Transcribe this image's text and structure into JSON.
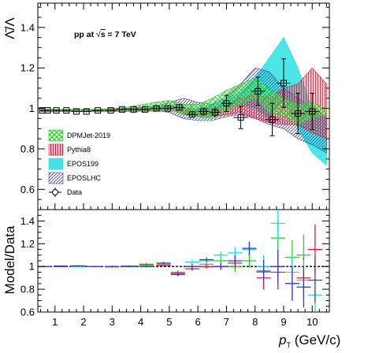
{
  "chart_data": [
    {
      "type": "line",
      "panel": "top",
      "ylabel": "Λ̄/Λ",
      "ylim": [
        0.5,
        1.52
      ],
      "xlim": [
        0.4,
        10.6
      ],
      "yticks": [
        0.6,
        0.8,
        1.0,
        1.2,
        1.4
      ],
      "yticklabels": [
        "0.6",
        "0.8",
        "1",
        "1.2",
        "1.4"
      ],
      "annotation": "pp at √s = 7 TeV",
      "annotation_parts": {
        "prefix": "pp at ",
        "root": "√",
        "s": "s",
        "suffix": " = 7 TeV"
      },
      "legend_position": "left",
      "legend": [
        {
          "name": "DPMJet-2019",
          "color": "#22cc22",
          "style": "cross-hatch"
        },
        {
          "name": "Pythia8",
          "color": "#ee1133",
          "style": "vertical-hatch"
        },
        {
          "name": "EPOS199",
          "color": "#11dddd",
          "style": "solid"
        },
        {
          "name": "EPOSLHC",
          "color": "#3333cc",
          "style": "diagonal-hatch"
        },
        {
          "name": "Data",
          "color": "#000000",
          "style": "marker"
        }
      ],
      "series": [
        {
          "name": "Data",
          "x": [
            0.55,
            0.75,
            1.05,
            1.4,
            1.75,
            2.1,
            2.5,
            2.95,
            3.35,
            3.75,
            4.15,
            4.55,
            4.95,
            5.35,
            5.8,
            6.2,
            6.6,
            7.0,
            7.5,
            8.1,
            8.6,
            9.0,
            9.5,
            10.0
          ],
          "y": [
            0.99,
            0.99,
            0.99,
            0.99,
            0.985,
            0.985,
            0.99,
            0.99,
            0.995,
            0.995,
            0.995,
            1.0,
            1.0,
            1.005,
            0.97,
            0.985,
            0.98,
            1.025,
            0.955,
            1.085,
            0.945,
            1.125,
            0.975,
            0.985
          ],
          "yerr": [
            0.005,
            0.005,
            0.005,
            0.005,
            0.005,
            0.005,
            0.005,
            0.005,
            0.005,
            0.006,
            0.006,
            0.008,
            0.01,
            0.012,
            0.015,
            0.02,
            0.025,
            0.04,
            0.055,
            0.07,
            0.08,
            0.12,
            0.1,
            0.09
          ],
          "xerr": [
            0.1,
            0.1,
            0.15,
            0.17,
            0.17,
            0.17,
            0.2,
            0.2,
            0.2,
            0.2,
            0.2,
            0.2,
            0.2,
            0.2,
            0.2,
            0.2,
            0.2,
            0.2,
            0.25,
            0.25,
            0.25,
            0.25,
            0.25,
            0.25
          ]
        },
        {
          "name": "DPMJet-2019",
          "x": [
            0.5,
            1.5,
            2.5,
            3.5,
            4.5,
            5.0,
            5.5,
            6.0,
            6.5,
            7.0,
            7.5,
            8.0,
            8.5,
            9.0,
            9.5,
            10.0,
            10.5
          ],
          "low": [
            0.985,
            0.985,
            0.985,
            0.985,
            0.985,
            0.995,
            0.97,
            0.96,
            0.95,
            0.99,
            1.02,
            1.05,
            0.98,
            0.96,
            0.92,
            0.95,
            0.97
          ],
          "high": [
            0.995,
            0.995,
            0.995,
            1.005,
            1.03,
            1.04,
            1.02,
            1.02,
            1.05,
            1.09,
            1.12,
            1.15,
            1.1,
            1.05,
            1.02,
            1.03,
            1.0
          ]
        },
        {
          "name": "Pythia8",
          "x": [
            0.5,
            1.5,
            2.5,
            3.5,
            4.5,
            5.0,
            5.5,
            6.0,
            6.5,
            7.0,
            7.5,
            8.0,
            8.5,
            9.0,
            9.5,
            10.0,
            10.5
          ],
          "low": [
            0.985,
            0.985,
            0.985,
            0.985,
            0.99,
            0.995,
            0.97,
            0.96,
            0.96,
            0.97,
            0.98,
            0.95,
            0.93,
            0.92,
            0.92,
            0.88,
            0.85
          ],
          "high": [
            0.995,
            0.995,
            0.995,
            1.0,
            1.01,
            1.015,
            1.0,
            0.99,
            1.0,
            1.02,
            1.05,
            1.07,
            1.05,
            1.1,
            1.12,
            1.2,
            1.12
          ]
        },
        {
          "name": "EPOS199",
          "x": [
            0.5,
            1.5,
            2.5,
            3.5,
            4.5,
            5.0,
            5.5,
            6.0,
            6.5,
            7.0,
            7.5,
            8.0,
            8.5,
            9.0,
            9.5,
            10.0,
            10.5
          ],
          "low": [
            0.985,
            0.985,
            0.985,
            0.99,
            0.99,
            0.995,
            0.975,
            0.96,
            0.97,
            1.0,
            1.02,
            1.0,
            0.95,
            1.05,
            0.9,
            0.78,
            0.72
          ],
          "high": [
            0.995,
            0.995,
            0.995,
            1.0,
            1.005,
            1.01,
            1.0,
            1.0,
            1.02,
            1.05,
            1.08,
            1.15,
            1.25,
            1.35,
            1.2,
            1.0,
            0.95
          ]
        },
        {
          "name": "EPOSLHC",
          "x": [
            0.5,
            1.5,
            2.5,
            3.5,
            4.5,
            5.0,
            5.5,
            6.0,
            6.5,
            7.0,
            7.5,
            8.0,
            8.5,
            9.0,
            9.5,
            10.0,
            10.5
          ],
          "low": [
            0.985,
            0.985,
            0.985,
            0.99,
            0.99,
            0.98,
            0.95,
            0.94,
            0.94,
            0.96,
            0.97,
            0.95,
            0.92,
            0.9,
            0.85,
            0.82,
            0.78
          ],
          "high": [
            0.995,
            0.995,
            0.995,
            1.0,
            1.01,
            1.03,
            1.05,
            1.03,
            1.02,
            1.06,
            1.12,
            1.2,
            1.18,
            1.1,
            1.05,
            1.0,
            0.96
          ]
        }
      ]
    },
    {
      "type": "scatter",
      "panel": "bottom",
      "ylabel": "Model/Data",
      "xlabel_main": "p",
      "xlabel_sub": "T",
      "xlabel_unit": " (GeV/c)",
      "ylim": [
        0.6,
        1.5
      ],
      "xlim": [
        0.4,
        10.6
      ],
      "yticks": [
        0.6,
        0.8,
        1.0,
        1.2,
        1.4
      ],
      "yticklabels": [
        "0.6",
        "0.8",
        "1",
        "1.2",
        "1.4"
      ],
      "xticks": [
        1,
        2,
        3,
        4,
        5,
        6,
        7,
        8,
        9,
        10
      ],
      "xticklabels": [
        "1",
        "2",
        "3",
        "4",
        "5",
        "6",
        "7",
        "8",
        "9",
        "10"
      ],
      "reference_line": 1.0,
      "series": [
        {
          "name": "DPMJet-2019",
          "color": "#22cc22",
          "x": [
            0.6,
            1.2,
            1.8,
            2.4,
            3.0,
            3.6,
            4.2,
            4.8,
            5.3,
            5.8,
            6.3,
            6.8,
            7.3,
            7.8,
            8.3,
            8.8,
            9.3,
            9.7,
            10.1
          ],
          "y": [
            1.0,
            1.0,
            1.005,
            1.0,
            1.0,
            1.005,
            1.01,
            1.02,
            0.95,
            1.0,
            1.02,
            1.05,
            1.0,
            1.05,
            0.95,
            1.25,
            1.08,
            1.1,
            1.15
          ],
          "yerr": [
            0.005,
            0.005,
            0.005,
            0.005,
            0.006,
            0.006,
            0.008,
            0.01,
            0.015,
            0.02,
            0.02,
            0.03,
            0.05,
            0.06,
            0.1,
            0.15,
            0.15,
            0.18,
            0.2
          ]
        },
        {
          "name": "Pythia8",
          "color": "#ee1133",
          "x": [
            0.6,
            1.2,
            1.8,
            2.4,
            3.0,
            3.6,
            4.2,
            4.8,
            5.3,
            5.8,
            6.3,
            6.8,
            7.3,
            7.8,
            8.3,
            8.8,
            9.3,
            9.7,
            10.1
          ],
          "y": [
            1.0,
            1.005,
            1.005,
            1.0,
            1.0,
            1.0,
            1.02,
            1.01,
            0.94,
            0.98,
            1.0,
            1.0,
            1.03,
            1.15,
            0.9,
            0.95,
            0.85,
            0.9,
            1.15
          ],
          "yerr": [
            0.005,
            0.005,
            0.005,
            0.005,
            0.006,
            0.006,
            0.008,
            0.01,
            0.015,
            0.02,
            0.02,
            0.03,
            0.05,
            0.06,
            0.1,
            0.15,
            0.15,
            0.18,
            0.22
          ]
        },
        {
          "name": "EPOS199",
          "color": "#11dddd",
          "x": [
            0.6,
            1.2,
            1.8,
            2.4,
            3.0,
            3.6,
            4.2,
            4.8,
            5.3,
            5.8,
            6.3,
            6.8,
            7.3,
            7.8,
            8.3,
            8.8,
            9.3,
            9.7,
            10.1
          ],
          "y": [
            1.0,
            1.0,
            1.0,
            1.0,
            0.995,
            1.0,
            1.0,
            1.02,
            0.93,
            1.04,
            1.05,
            1.1,
            1.12,
            1.15,
            1.0,
            1.38,
            0.95,
            0.88,
            0.75
          ],
          "yerr": [
            0.005,
            0.005,
            0.005,
            0.005,
            0.006,
            0.006,
            0.008,
            0.01,
            0.015,
            0.02,
            0.02,
            0.03,
            0.05,
            0.06,
            0.1,
            0.15,
            0.15,
            0.18,
            0.15
          ]
        },
        {
          "name": "EPOSLHC",
          "color": "#3333cc",
          "x": [
            0.6,
            1.2,
            1.8,
            2.4,
            3.0,
            3.6,
            4.2,
            4.8,
            5.3,
            5.8,
            6.3,
            6.8,
            7.3,
            7.8,
            8.3,
            8.8,
            9.3,
            9.7,
            10.1
          ],
          "y": [
            1.0,
            1.0,
            1.005,
            1.0,
            1.0,
            1.0,
            1.0,
            1.03,
            0.93,
            1.0,
            1.06,
            1.0,
            1.05,
            1.16,
            0.96,
            1.0,
            0.85,
            0.82,
            0.88
          ],
          "yerr": [
            0.005,
            0.005,
            0.005,
            0.005,
            0.006,
            0.006,
            0.008,
            0.01,
            0.015,
            0.02,
            0.02,
            0.03,
            0.05,
            0.06,
            0.1,
            0.15,
            0.15,
            0.18,
            0.2
          ]
        }
      ]
    }
  ]
}
